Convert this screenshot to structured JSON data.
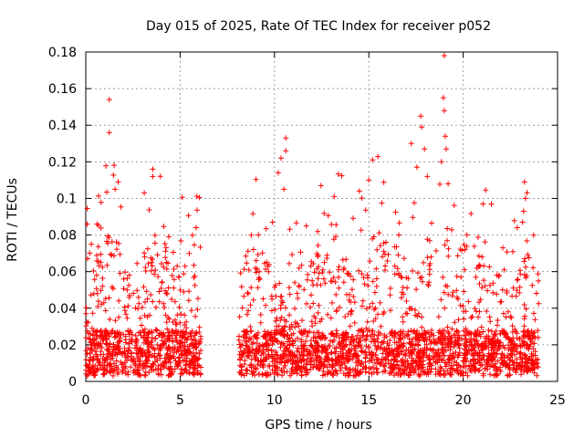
{
  "chart_data": {
    "type": "scatter",
    "title": "Day 015 of 2025, Rate Of TEC Index for receiver p052",
    "xlabel": "GPS time / hours",
    "ylabel": "ROTI / TECUs",
    "xlim": [
      0,
      25
    ],
    "ylim": [
      0,
      0.18
    ],
    "xticks": [
      0,
      5,
      10,
      15,
      20,
      25
    ],
    "xtick_labels": [
      "0",
      "5",
      "10",
      "15",
      "20",
      "25"
    ],
    "yticks": [
      0,
      0.02,
      0.04,
      0.06,
      0.08,
      0.1,
      0.12,
      0.14,
      0.16,
      0.18
    ],
    "ytick_labels": [
      "0",
      "0.02",
      "0.04",
      "0.06",
      "0.08",
      "0.1",
      "0.12",
      "0.14",
      "0.16",
      "0.18"
    ],
    "grid": true,
    "marker": "+",
    "color": "#ff0000",
    "data_gap_hours": [
      6.1,
      8.1
    ],
    "series": [
      {
        "name": "ROTI",
        "outliers": [
          {
            "x": 1.25,
            "y": 0.154
          },
          {
            "x": 1.25,
            "y": 0.136
          },
          {
            "x": 1.55,
            "y": 0.105
          },
          {
            "x": 3.1,
            "y": 0.103
          },
          {
            "x": 3.55,
            "y": 0.116
          },
          {
            "x": 3.55,
            "y": 0.112
          },
          {
            "x": 0.6,
            "y": 0.086
          },
          {
            "x": 5.85,
            "y": 0.084
          },
          {
            "x": 10.6,
            "y": 0.133
          },
          {
            "x": 10.35,
            "y": 0.122
          },
          {
            "x": 10.6,
            "y": 0.126
          },
          {
            "x": 10.2,
            "y": 0.114
          },
          {
            "x": 10.5,
            "y": 0.105
          },
          {
            "x": 9.9,
            "y": 0.087
          },
          {
            "x": 15.2,
            "y": 0.121
          },
          {
            "x": 15.0,
            "y": 0.11
          },
          {
            "x": 14.5,
            "y": 0.104
          },
          {
            "x": 17.25,
            "y": 0.13
          },
          {
            "x": 17.55,
            "y": 0.117
          },
          {
            "x": 17.75,
            "y": 0.145
          },
          {
            "x": 17.8,
            "y": 0.139
          },
          {
            "x": 17.95,
            "y": 0.127
          },
          {
            "x": 18.1,
            "y": 0.112
          },
          {
            "x": 19.0,
            "y": 0.178
          },
          {
            "x": 18.95,
            "y": 0.155
          },
          {
            "x": 19.0,
            "y": 0.148
          },
          {
            "x": 19.05,
            "y": 0.134
          },
          {
            "x": 19.1,
            "y": 0.127
          },
          {
            "x": 18.85,
            "y": 0.12
          },
          {
            "x": 19.2,
            "y": 0.108
          },
          {
            "x": 20.1,
            "y": 0.072
          },
          {
            "x": 21.0,
            "y": 0.068
          },
          {
            "x": 22.1,
            "y": 0.073
          },
          {
            "x": 23.25,
            "y": 0.109
          },
          {
            "x": 23.3,
            "y": 0.1
          },
          {
            "x": 23.2,
            "y": 0.093
          },
          {
            "x": 23.15,
            "y": 0.087
          }
        ]
      }
    ]
  }
}
